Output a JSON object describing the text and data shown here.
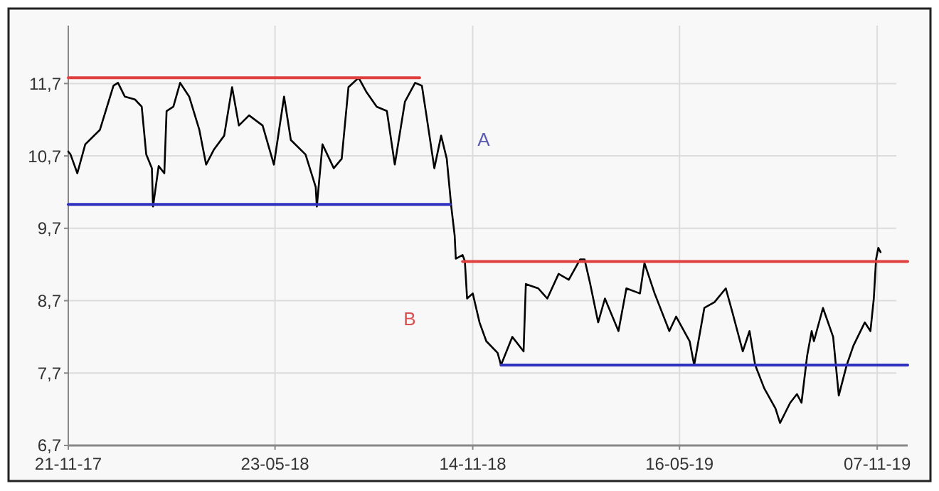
{
  "chart_data": {
    "type": "line",
    "xlim": [
      "2017-11-21",
      "2019-12-04"
    ],
    "ylim": [
      6.7,
      12.5
    ],
    "xticks": [
      {
        "value": "2017-11-21",
        "label": "21-11-17"
      },
      {
        "value": "2018-05-23",
        "label": "23-05-18"
      },
      {
        "value": "2018-11-14",
        "label": "14-11-18"
      },
      {
        "value": "2019-05-16",
        "label": "16-05-19"
      },
      {
        "value": "2019-11-07",
        "label": "07-11-19"
      }
    ],
    "yticks": [
      {
        "value": 6.7,
        "label": "6,7"
      },
      {
        "value": 7.7,
        "label": "7,7"
      },
      {
        "value": 8.7,
        "label": "8,7"
      },
      {
        "value": 9.7,
        "label": "9,7"
      },
      {
        "value": 10.7,
        "label": "10,7"
      },
      {
        "value": 11.7,
        "label": "11,7"
      }
    ],
    "grid": true,
    "marker": "none",
    "line_style": "solid",
    "series": [
      {
        "color": "#000000",
        "x": [
          "2017-11-21",
          "2017-11-23",
          "2017-11-29",
          "2017-12-06",
          "2017-12-19",
          "2017-12-31",
          "2018-01-04",
          "2018-01-10",
          "2018-01-19",
          "2018-01-25",
          "2018-01-29",
          "2018-02-03",
          "2018-02-04",
          "2018-02-09",
          "2018-02-14",
          "2018-02-16",
          "2018-02-22",
          "2018-02-28",
          "2018-03-08",
          "2018-03-17",
          "2018-03-23",
          "2018-03-30",
          "2018-04-08",
          "2018-04-15",
          "2018-04-21",
          "2018-04-30",
          "2018-05-12",
          "2018-05-22",
          "2018-05-31",
          "2018-06-06",
          "2018-06-19",
          "2018-06-28",
          "2018-06-29",
          "2018-07-04",
          "2018-07-14",
          "2018-07-21",
          "2018-07-27",
          "2018-08-05",
          "2018-08-12",
          "2018-08-21",
          "2018-08-30",
          "2018-09-06",
          "2018-09-15",
          "2018-09-24",
          "2018-09-30",
          "2018-10-04",
          "2018-10-11",
          "2018-10-17",
          "2018-10-22",
          "2018-10-26",
          "2018-10-29",
          "2018-10-30",
          "2018-11-05",
          "2018-11-07",
          "2018-11-09",
          "2018-11-14",
          "2018-11-20",
          "2018-11-26",
          "2018-12-06",
          "2018-12-09",
          "2018-12-19",
          "2018-12-29",
          "2018-12-31",
          "2019-01-11",
          "2019-01-19",
          "2019-01-29",
          "2019-02-07",
          "2019-02-17",
          "2019-02-21",
          "2019-02-26",
          "2019-03-05",
          "2019-03-11",
          "2019-03-23",
          "2019-03-30",
          "2019-04-11",
          "2019-04-15",
          "2019-04-24",
          "2019-05-07",
          "2019-05-13",
          "2019-05-25",
          "2019-05-29",
          "2019-06-07",
          "2019-06-16",
          "2019-06-26",
          "2019-07-02",
          "2019-07-11",
          "2019-07-17",
          "2019-07-22",
          "2019-07-30",
          "2019-08-09",
          "2019-08-13",
          "2019-08-22",
          "2019-08-28",
          "2019-09-01",
          "2019-09-06",
          "2019-09-10",
          "2019-09-12",
          "2019-09-20",
          "2019-09-29",
          "2019-10-04",
          "2019-10-11",
          "2019-10-17",
          "2019-10-27",
          "2019-11-01",
          "2019-11-04",
          "2019-11-06",
          "2019-11-08",
          "2019-11-10"
        ],
        "values": [
          10.76,
          10.72,
          10.46,
          10.86,
          11.06,
          11.67,
          11.71,
          11.52,
          11.48,
          11.38,
          10.72,
          10.53,
          10.0,
          10.56,
          10.46,
          11.32,
          11.38,
          11.71,
          11.52,
          11.06,
          10.58,
          10.79,
          10.98,
          11.65,
          11.12,
          11.26,
          11.12,
          10.58,
          11.52,
          10.92,
          10.72,
          10.27,
          10.0,
          10.86,
          10.53,
          10.66,
          11.65,
          11.78,
          11.58,
          11.38,
          11.32,
          10.58,
          11.45,
          11.71,
          11.67,
          11.26,
          10.53,
          10.98,
          10.66,
          10.0,
          9.6,
          9.28,
          9.33,
          9.25,
          8.73,
          8.8,
          8.4,
          8.14,
          7.98,
          7.81,
          8.2,
          8.0,
          8.93,
          8.87,
          8.73,
          9.07,
          8.99,
          9.27,
          9.27,
          8.93,
          8.4,
          8.73,
          8.28,
          8.87,
          8.8,
          9.22,
          8.8,
          8.28,
          8.48,
          8.14,
          7.81,
          8.6,
          8.68,
          8.87,
          8.53,
          8.0,
          8.28,
          7.81,
          7.49,
          7.21,
          7.01,
          7.29,
          7.41,
          7.29,
          7.94,
          8.28,
          8.14,
          8.6,
          8.2,
          7.39,
          7.81,
          8.08,
          8.4,
          8.28,
          8.73,
          9.27,
          9.43,
          9.37
        ]
      },
      {
        "color": "#e04040",
        "x": [
          "2017-11-21",
          "2018-09-28"
        ],
        "values": [
          11.78,
          11.78
        ]
      },
      {
        "color": "#3030c0",
        "x": [
          "2017-11-21",
          "2018-10-25"
        ],
        "values": [
          10.03,
          10.03
        ]
      },
      {
        "color": "#e04040",
        "x": [
          "2018-11-05",
          "2019-12-04"
        ],
        "values": [
          9.24,
          9.24
        ]
      },
      {
        "color": "#3030c0",
        "x": [
          "2018-12-09",
          "2019-12-04"
        ],
        "values": [
          7.81,
          7.81
        ]
      }
    ],
    "annotations": [
      "A",
      "B"
    ]
  }
}
